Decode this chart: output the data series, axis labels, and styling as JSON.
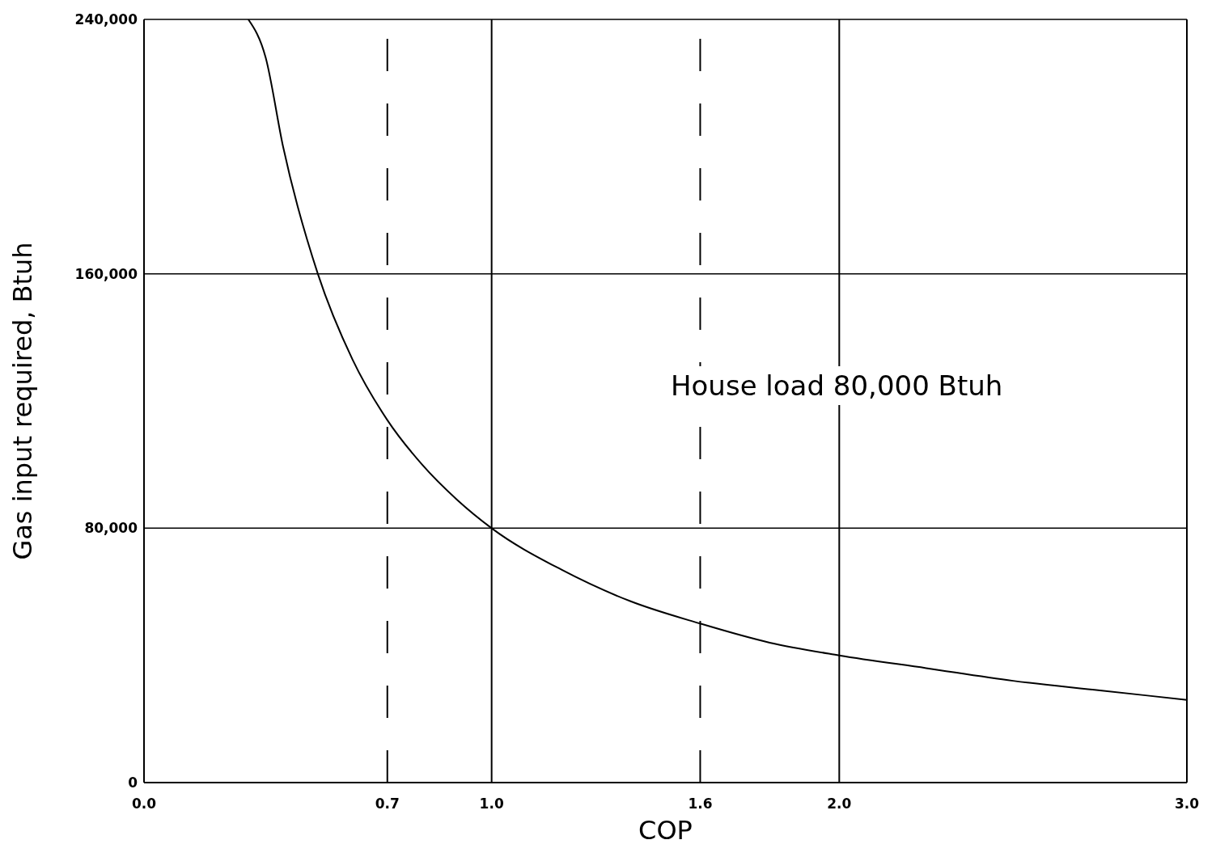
{
  "chart_data": {
    "type": "line",
    "xlabel": "COP",
    "ylabel": "Gas input required, Btuh",
    "annotations": [
      "House load 80,000 Btuh"
    ],
    "x": [
      0.3,
      0.35,
      0.4,
      0.5,
      0.6,
      0.7,
      0.8,
      0.9,
      1.0,
      1.2,
      1.4,
      1.6,
      1.8,
      2.0,
      2.25,
      2.5,
      2.75,
      3.0
    ],
    "series": [
      {
        "color": "#000000",
        "values": [
          240000,
          228000,
          200000,
          160000,
          133000,
          114000,
          100000,
          89000,
          80000,
          67000,
          57000,
          50000,
          44000,
          40000,
          36000,
          32000,
          29000,
          26000
        ]
      }
    ],
    "xlim": [
      0,
      3
    ],
    "xticks": [
      {
        "value": 0,
        "label": "0.0"
      },
      0.7,
      {
        "value": 1,
        "label": "1.0"
      },
      1.6,
      {
        "value": 2,
        "label": "2.0"
      },
      {
        "value": 3,
        "label": "3.0"
      }
    ],
    "ylim": [
      0,
      240000
    ],
    "yticks": [
      {
        "value": 0,
        "label": "0"
      },
      {
        "value": 80000,
        "label": "80,000"
      },
      {
        "value": 160000,
        "label": "160,000"
      },
      {
        "value": 240000,
        "label": "240,000"
      }
    ],
    "grid": "y",
    "marker": "none",
    "line_style": "solid",
    "ref_lines": [
      {
        "axis": "x",
        "value": 0.7,
        "line_style": "dashed",
        "color": "#000000"
      },
      {
        "axis": "x",
        "value": 1.0,
        "line_style": "solid",
        "color": "#000000"
      },
      {
        "axis": "x",
        "value": 1.6,
        "line_style": "dashed",
        "color": "#000000"
      },
      {
        "axis": "x",
        "value": 2.0,
        "line_style": "solid",
        "color": "#000000"
      }
    ]
  }
}
